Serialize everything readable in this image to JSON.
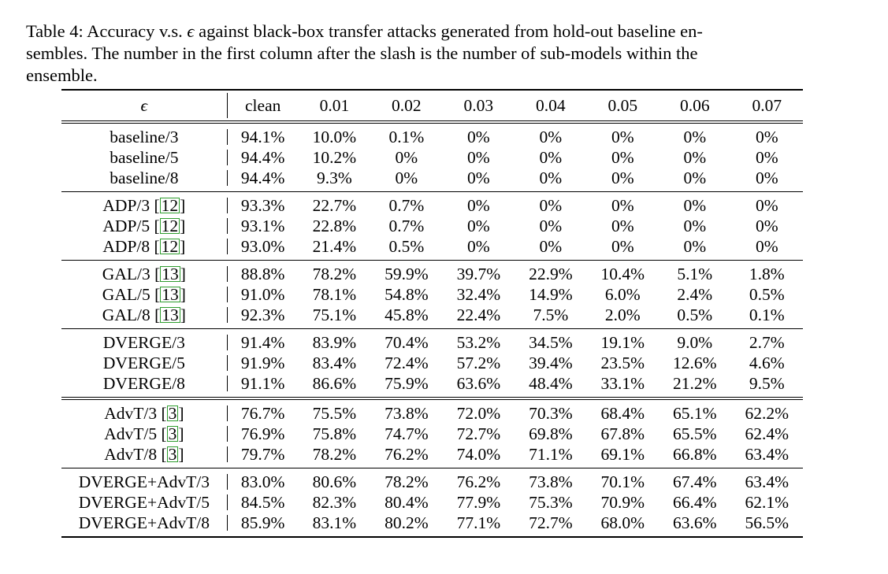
{
  "caption": {
    "line1_a": "Table 4: Accuracy v.s. ",
    "epsilon": "ϵ",
    "line1_b": " against black-box transfer attacks generated from hold-out baseline en-",
    "line2": "sembles. The number in the first column after the slash is the number of sub-models within the",
    "line3": "ensemble."
  },
  "table": {
    "header": {
      "label": "ϵ",
      "columns": [
        "clean",
        "0.01",
        "0.02",
        "0.03",
        "0.04",
        "0.05",
        "0.06",
        "0.07"
      ]
    },
    "groups": [
      {
        "rows": [
          {
            "name": "baseline/3",
            "cite": "",
            "values": [
              "94.1%",
              "10.0%",
              "0.1%",
              "0%",
              "0%",
              "0%",
              "0%",
              "0%"
            ]
          },
          {
            "name": "baseline/5",
            "cite": "",
            "values": [
              "94.4%",
              "10.2%",
              "0%",
              "0%",
              "0%",
              "0%",
              "0%",
              "0%"
            ]
          },
          {
            "name": "baseline/8",
            "cite": "",
            "values": [
              "94.4%",
              "9.3%",
              "0%",
              "0%",
              "0%",
              "0%",
              "0%",
              "0%"
            ]
          }
        ]
      },
      {
        "rows": [
          {
            "name": "ADP/3 ",
            "cite": "12",
            "values": [
              "93.3%",
              "22.7%",
              "0.7%",
              "0%",
              "0%",
              "0%",
              "0%",
              "0%"
            ]
          },
          {
            "name": "ADP/5 ",
            "cite": "12",
            "values": [
              "93.1%",
              "22.8%",
              "0.7%",
              "0%",
              "0%",
              "0%",
              "0%",
              "0%"
            ]
          },
          {
            "name": "ADP/8 ",
            "cite": "12",
            "values": [
              "93.0%",
              "21.4%",
              "0.5%",
              "0%",
              "0%",
              "0%",
              "0%",
              "0%"
            ]
          }
        ]
      },
      {
        "rows": [
          {
            "name": "GAL/3 ",
            "cite": "13",
            "values": [
              "88.8%",
              "78.2%",
              "59.9%",
              "39.7%",
              "22.9%",
              "10.4%",
              "5.1%",
              "1.8%"
            ]
          },
          {
            "name": "GAL/5 ",
            "cite": "13",
            "values": [
              "91.0%",
              "78.1%",
              "54.8%",
              "32.4%",
              "14.9%",
              "6.0%",
              "2.4%",
              "0.5%"
            ]
          },
          {
            "name": "GAL/8 ",
            "cite": "13",
            "values": [
              "92.3%",
              "75.1%",
              "45.8%",
              "22.4%",
              "7.5%",
              "2.0%",
              "0.5%",
              "0.1%"
            ]
          }
        ]
      },
      {
        "rows": [
          {
            "name": "DVERGE/3",
            "cite": "",
            "values": [
              "91.4%",
              "83.9%",
              "70.4%",
              "53.2%",
              "34.5%",
              "19.1%",
              "9.0%",
              "2.7%"
            ]
          },
          {
            "name": "DVERGE/5",
            "cite": "",
            "values": [
              "91.9%",
              "83.4%",
              "72.4%",
              "57.2%",
              "39.4%",
              "23.5%",
              "12.6%",
              "4.6%"
            ]
          },
          {
            "name": "DVERGE/8",
            "cite": "",
            "values": [
              "91.1%",
              "86.6%",
              "75.9%",
              "63.6%",
              "48.4%",
              "33.1%",
              "21.2%",
              "9.5%"
            ]
          }
        ]
      },
      {
        "rows": [
          {
            "name": "AdvT/3 ",
            "cite": "3",
            "values": [
              "76.7%",
              "75.5%",
              "73.8%",
              "72.0%",
              "70.3%",
              "68.4%",
              "65.1%",
              "62.2%"
            ]
          },
          {
            "name": "AdvT/5 ",
            "cite": "3",
            "values": [
              "76.9%",
              "75.8%",
              "74.7%",
              "72.7%",
              "69.8%",
              "67.8%",
              "65.5%",
              "62.4%"
            ]
          },
          {
            "name": "AdvT/8 ",
            "cite": "3",
            "values": [
              "79.7%",
              "78.2%",
              "76.2%",
              "74.0%",
              "71.1%",
              "69.1%",
              "66.8%",
              "63.4%"
            ]
          }
        ]
      },
      {
        "rows": [
          {
            "name": "DVERGE+AdvT/3",
            "cite": "",
            "values": [
              "83.0%",
              "80.6%",
              "78.2%",
              "76.2%",
              "73.8%",
              "70.1%",
              "67.4%",
              "63.4%"
            ]
          },
          {
            "name": "DVERGE+AdvT/5",
            "cite": "",
            "values": [
              "84.5%",
              "82.3%",
              "80.4%",
              "77.9%",
              "75.3%",
              "70.9%",
              "66.4%",
              "62.1%"
            ]
          },
          {
            "name": "DVERGE+AdvT/8",
            "cite": "",
            "values": [
              "85.9%",
              "83.1%",
              "80.2%",
              "77.1%",
              "72.7%",
              "68.0%",
              "63.6%",
              "56.5%"
            ]
          }
        ]
      }
    ]
  }
}
